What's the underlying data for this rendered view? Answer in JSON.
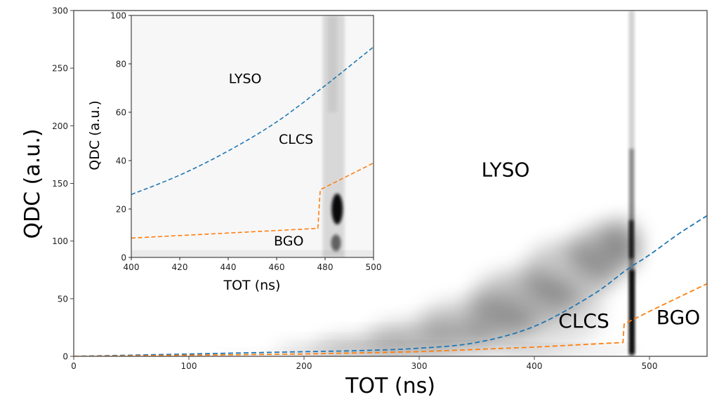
{
  "chart_data": [
    {
      "id": "main",
      "type": "heatmap",
      "description": "2D density histogram of QDC vs TOT with dashed discrimination curves",
      "title": "",
      "xlabel": "TOT (ns)",
      "ylabel": "QDC (a.u.)",
      "xlim": [
        0,
        550
      ],
      "ylim": [
        0,
        300
      ],
      "xticks": [
        0,
        100,
        200,
        300,
        400,
        500
      ],
      "yticks": [
        0,
        50,
        100,
        150,
        200,
        250,
        300
      ],
      "grid": false,
      "colormap": "greys",
      "region_labels": [
        {
          "text": "LYSO",
          "x": 375,
          "y": 156
        },
        {
          "text": "CLCS",
          "x": 443,
          "y": 25
        },
        {
          "text": "BGO",
          "x": 525,
          "y": 28
        }
      ],
      "density_features": [
        {
          "name": "LYSO band",
          "x_range": [
            150,
            480
          ],
          "y_center_at": [
            [
              200,
              5
            ],
            [
              300,
              20
            ],
            [
              400,
              60
            ],
            [
              470,
              110
            ]
          ]
        },
        {
          "name": "vertical TOT saturation band",
          "x": 484,
          "y_range": [
            0,
            300
          ]
        },
        {
          "name": "BGO/CLCS dense cluster",
          "x": 484,
          "y_range": [
            2,
            110
          ]
        }
      ],
      "series": [
        {
          "name": "LYSO/CLCS boundary",
          "color": "#1f77b4",
          "style": "dashed",
          "x": [
            0,
            50,
            100,
            150,
            200,
            250,
            300,
            350,
            400,
            450,
            480,
            500,
            525,
            550
          ],
          "y": [
            0,
            1,
            2,
            3,
            4,
            5,
            7,
            12,
            26,
            53,
            75,
            88,
            106,
            122
          ]
        },
        {
          "name": "CLCS/BGO boundary",
          "color": "#ff7f0e",
          "style": "dashed",
          "x": [
            0,
            100,
            200,
            300,
            400,
            477,
            478,
            500,
            550
          ],
          "y": [
            0,
            1,
            2,
            4,
            8,
            12,
            28,
            39,
            63
          ]
        }
      ]
    },
    {
      "id": "inset",
      "type": "heatmap",
      "description": "zoomed inset of the BGO/CLCS region",
      "title": "",
      "xlabel": "TOT (ns)",
      "ylabel": "QDC (a.u.)",
      "xlim": [
        400,
        500
      ],
      "ylim": [
        0,
        100
      ],
      "xticks": [
        400,
        420,
        440,
        460,
        480,
        500
      ],
      "yticks": [
        0,
        20,
        40,
        60,
        80,
        100
      ],
      "grid": false,
      "colormap": "greys",
      "region_labels": [
        {
          "text": "LYSO",
          "x": 447,
          "y": 72
        },
        {
          "text": "CLCS",
          "x": 468,
          "y": 47
        },
        {
          "text": "BGO",
          "x": 465,
          "y": 5
        }
      ],
      "density_features": [
        {
          "name": "vertical band",
          "x_range": [
            478,
            488
          ],
          "y_range": [
            0,
            100
          ]
        },
        {
          "name": "dense cluster",
          "x": 485,
          "y": 20
        }
      ],
      "series": [
        {
          "name": "LYSO/CLCS boundary",
          "color": "#1f77b4",
          "style": "dashed",
          "x": [
            400,
            420,
            440,
            460,
            480,
            500
          ],
          "y": [
            26,
            34,
            44,
            56,
            71,
            87
          ]
        },
        {
          "name": "CLCS/BGO boundary",
          "color": "#ff7f0e",
          "style": "dashed",
          "x": [
            400,
            477,
            478,
            500
          ],
          "y": [
            8,
            12,
            28,
            39
          ]
        }
      ]
    }
  ]
}
